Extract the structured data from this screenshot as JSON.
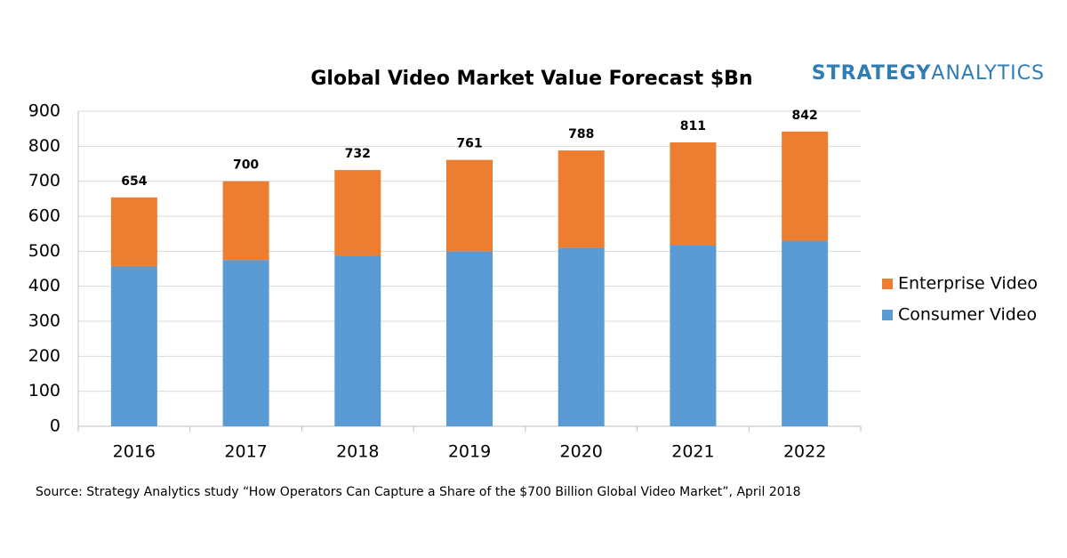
{
  "chart_data": {
    "type": "stacked_bar",
    "title": "Global Video Market Value Forecast $Bn",
    "logo": [
      "STRATEGY",
      "ANALYTICS"
    ],
    "source": "Source: Strategy Analytics study “How Operators Can Capture a Share of the $700 Billion Global Video Market”, April 2018",
    "categories": [
      "2016",
      "2017",
      "2018",
      "2019",
      "2020",
      "2021",
      "2022"
    ],
    "series": [
      {
        "name": "Consumer Video",
        "color": "#5b9bd5",
        "values": [
          458,
          475,
          488,
          500,
          510,
          516,
          530
        ]
      },
      {
        "name": "Enterprise Video",
        "color": "#ed7d31",
        "values": [
          196,
          225,
          244,
          261,
          278,
          295,
          312
        ]
      }
    ],
    "totals": [
      654,
      700,
      732,
      761,
      788,
      811,
      842
    ],
    "ylim": [
      0,
      900
    ],
    "yticks": [
      0,
      100,
      200,
      300,
      400,
      500,
      600,
      700,
      800,
      900
    ],
    "grid": true,
    "legend": "right"
  }
}
